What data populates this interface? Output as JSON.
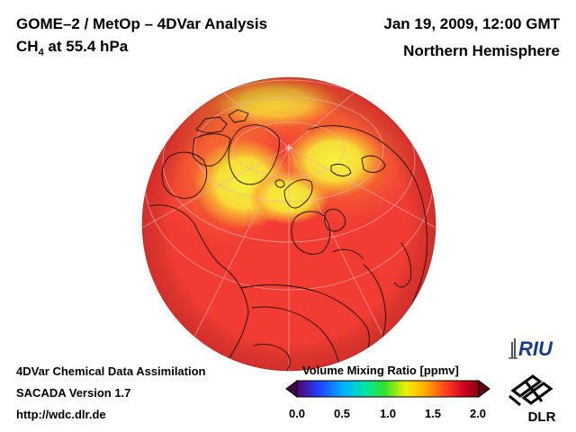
{
  "header": {
    "title": "GOME–2 / MetOp – 4DVar Analysis",
    "species_main": "CH",
    "species_sub": "4",
    "species_level": " at 55.4 hPa",
    "date": "Jan 19, 2009, 12:00 GMT",
    "region": "Northern Hemisphere"
  },
  "footer": {
    "line1": "4DVar Chemical Data Assimilation",
    "line2": "SACADA Version 1.7",
    "line3": "http://wdc.dlr.de"
  },
  "colorbar": {
    "title": "Volume Mixing Ratio [ppmv]",
    "ticks": [
      "0.0",
      "0.5",
      "1.0",
      "1.5",
      "2.0"
    ],
    "range": [
      0.0,
      2.0
    ],
    "colors": [
      "#5a006e",
      "#2040ff",
      "#00b4ff",
      "#00e6a0",
      "#30e030",
      "#f0f000",
      "#ffb000",
      "#ff4020",
      "#d00020",
      "#800010"
    ]
  },
  "logos": {
    "riu": "RIU",
    "dlr": "DLR"
  },
  "map": {
    "projection": "orthographic, north polar view",
    "field_colors": {
      "background": "#f23c33",
      "high": "#f5ef3a",
      "mid": "#f9a130"
    }
  }
}
